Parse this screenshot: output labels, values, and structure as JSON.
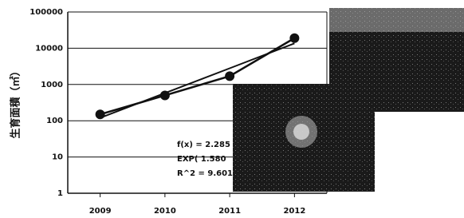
{
  "chart_data": {
    "type": "line",
    "y_label": "生育面積（㎡）",
    "categories": [
      "2009",
      "2010",
      "2011",
      "2012"
    ],
    "series": [
      {
        "color": "#111111",
        "values": [
          150,
          500,
          1700,
          19000
        ]
      },
      {
        "color": "#111111",
        "values": [
          120,
          580,
          2800,
          13600
        ]
      }
    ],
    "annotations": [
      "f(x) = 2.285",
      "EXP( 1.580",
      "R^2 = 9.601"
    ],
    "log_scale": true,
    "ylim": [
      1,
      100000
    ],
    "yticks": [
      1,
      10,
      100,
      1000,
      10000,
      100000
    ],
    "grid": true
  }
}
